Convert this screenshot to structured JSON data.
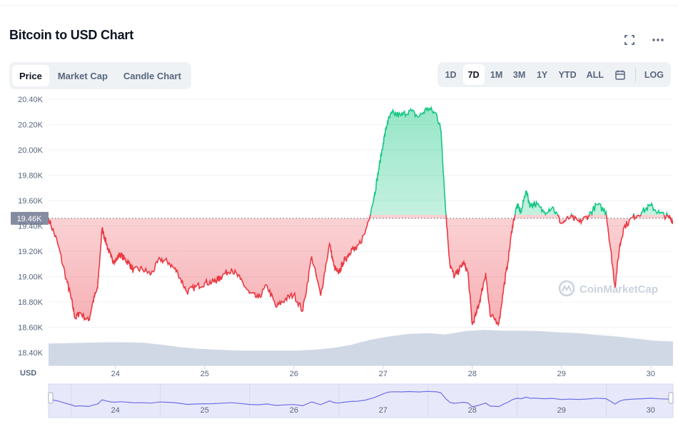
{
  "header": {
    "title": "Bitcoin to USD Chart"
  },
  "tabs": [
    {
      "label": "Price",
      "active": true
    },
    {
      "label": "Market Cap",
      "active": false
    },
    {
      "label": "Candle Chart",
      "active": false
    }
  ],
  "ranges": [
    {
      "label": "1D",
      "active": false
    },
    {
      "label": "7D",
      "active": true
    },
    {
      "label": "1M",
      "active": false
    },
    {
      "label": "3M",
      "active": false
    },
    {
      "label": "1Y",
      "active": false
    },
    {
      "label": "YTD",
      "active": false
    },
    {
      "label": "ALL",
      "active": false
    }
  ],
  "log_label": "LOG",
  "icons": {
    "fullscreen": "fullscreen-icon",
    "more": "more-icon",
    "calendar": "calendar-icon"
  },
  "colors": {
    "up": "#16c784",
    "down": "#ea3943",
    "volume": "#cfd6e4",
    "navigator_line": "#6f6fe6"
  },
  "watermark": "CoinMarketCap",
  "chart_data": {
    "type": "line",
    "xlabel": "",
    "ylabel": "USD",
    "ylim": [
      18300,
      20450
    ],
    "xlim": [
      23.25,
      30.25
    ],
    "y_ticks": [
      "20.40K",
      "20.20K",
      "20.00K",
      "19.80K",
      "19.60K",
      "19.40K",
      "19.20K",
      "19.00K",
      "18.80K",
      "18.60K",
      "18.40K"
    ],
    "x_ticks": [
      "24",
      "25",
      "26",
      "27",
      "28",
      "29",
      "30"
    ],
    "baseline": {
      "value": 19460,
      "label": "19.46K"
    },
    "grid": true,
    "series": [
      {
        "x": [
          23.25,
          23.35,
          23.45,
          23.5,
          23.55,
          23.6,
          23.7,
          23.75,
          23.8,
          23.85,
          23.9,
          23.95,
          24.0,
          24.05,
          24.1,
          24.15,
          24.2,
          24.3,
          24.4,
          24.5,
          24.6,
          24.7,
          24.8,
          24.9,
          25.0,
          25.1,
          25.15,
          25.2,
          25.3,
          25.4,
          25.5,
          25.6,
          25.7,
          25.8,
          25.9,
          26.0,
          26.1,
          26.2,
          26.3,
          26.4,
          26.45,
          26.5,
          26.55,
          26.6,
          26.65,
          26.7,
          26.8,
          26.9,
          26.95,
          27.0,
          27.05,
          27.1,
          27.2,
          27.3,
          27.4,
          27.5,
          27.6,
          27.65,
          27.7,
          27.75,
          27.8,
          27.85,
          27.9,
          27.95,
          28.0,
          28.05,
          28.1,
          28.15,
          28.2,
          28.3,
          28.35,
          28.4,
          28.45,
          28.5,
          28.55,
          28.6,
          28.65,
          28.7,
          28.8,
          28.9,
          29.0,
          29.1,
          29.2,
          29.3,
          29.4,
          29.5,
          29.55,
          29.6,
          29.65,
          29.7,
          29.8,
          29.9,
          30.0,
          30.1,
          30.2,
          30.25
        ],
        "y": [
          19460,
          19270,
          18980,
          18840,
          18670,
          18720,
          18650,
          18810,
          18910,
          19380,
          19260,
          19150,
          19120,
          19180,
          19140,
          19110,
          19050,
          19060,
          19020,
          19140,
          19110,
          19030,
          18880,
          18920,
          18950,
          18960,
          18980,
          19010,
          19060,
          18980,
          18870,
          18830,
          18930,
          18760,
          18820,
          18860,
          18730,
          19160,
          18850,
          19260,
          19080,
          19020,
          19110,
          19160,
          19220,
          19210,
          19350,
          19630,
          19840,
          20050,
          20220,
          20290,
          20270,
          20310,
          20260,
          20330,
          20280,
          20150,
          19540,
          19090,
          19000,
          19050,
          19110,
          19040,
          18620,
          18720,
          18860,
          19030,
          18690,
          18640,
          18900,
          19120,
          19400,
          19560,
          19510,
          19680,
          19560,
          19580,
          19510,
          19550,
          19420,
          19470,
          19430,
          19480,
          19570,
          19510,
          19220,
          18920,
          19230,
          19390,
          19470,
          19510,
          19560,
          19500,
          19470,
          19440
        ]
      }
    ],
    "volume": [
      0.53,
      0.54,
      0.55,
      0.56,
      0.56,
      0.55,
      0.5,
      0.44,
      0.4,
      0.38,
      0.36,
      0.36,
      0.36,
      0.36,
      0.38,
      0.42,
      0.5,
      0.62,
      0.7,
      0.76,
      0.78,
      0.75,
      0.83,
      0.86,
      0.84,
      0.84,
      0.83,
      0.8,
      0.78,
      0.74,
      0.7,
      0.65,
      0.6,
      0.58
    ]
  },
  "navigator": {
    "x_ticks": [
      "24",
      "25",
      "26",
      "27",
      "28",
      "29",
      "30"
    ]
  }
}
